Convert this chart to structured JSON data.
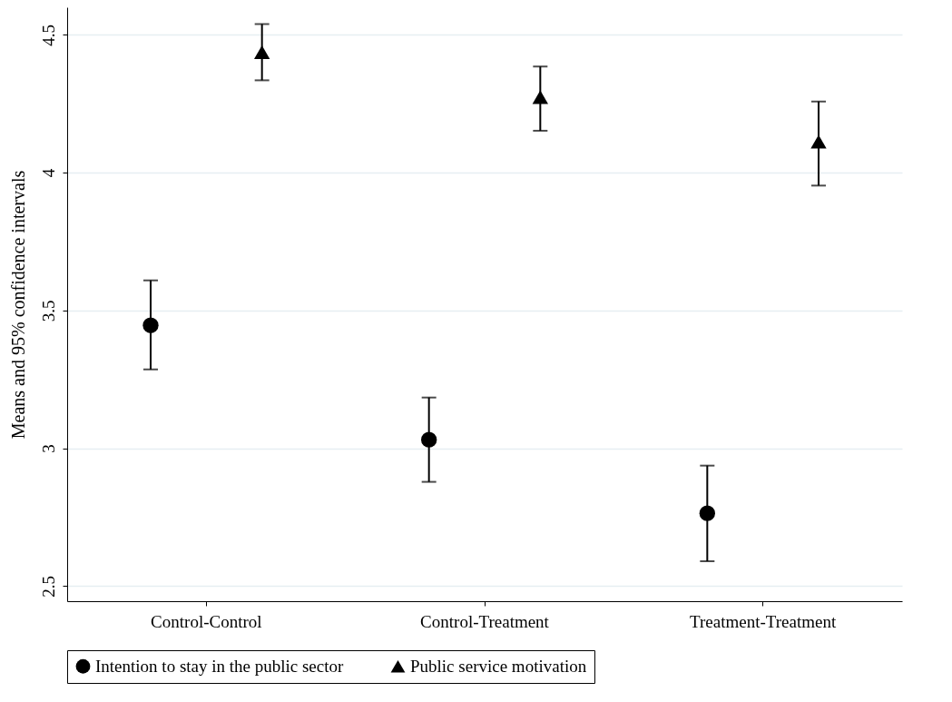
{
  "chart_data": {
    "type": "scatter",
    "ylabel": "Means and 95% confidence intervals",
    "categories": [
      "Control-Control",
      "Control-Treatment",
      "Treatment-Treatment"
    ],
    "series": [
      {
        "name": "Intention to stay in the public sector",
        "color": "#000000",
        "marker": "circle",
        "values": [
          3.446,
          3.031,
          2.764
        ],
        "errors": [
          [
            3.286,
            3.609
          ],
          [
            2.878,
            3.184
          ],
          [
            2.59,
            2.937
          ]
        ]
      },
      {
        "name": "Public service motivation",
        "color": "#000000",
        "marker": "triangle",
        "values": [
          4.437,
          4.274,
          4.112
        ],
        "errors": [
          [
            4.335,
            4.539
          ],
          [
            4.152,
            4.385
          ],
          [
            3.953,
            4.258
          ]
        ]
      }
    ],
    "ylim": [
      2.445,
      4.6
    ],
    "yticks": [
      2.5,
      3,
      3.5,
      4,
      4.5
    ],
    "grid": "y",
    "legend": "bottom"
  }
}
